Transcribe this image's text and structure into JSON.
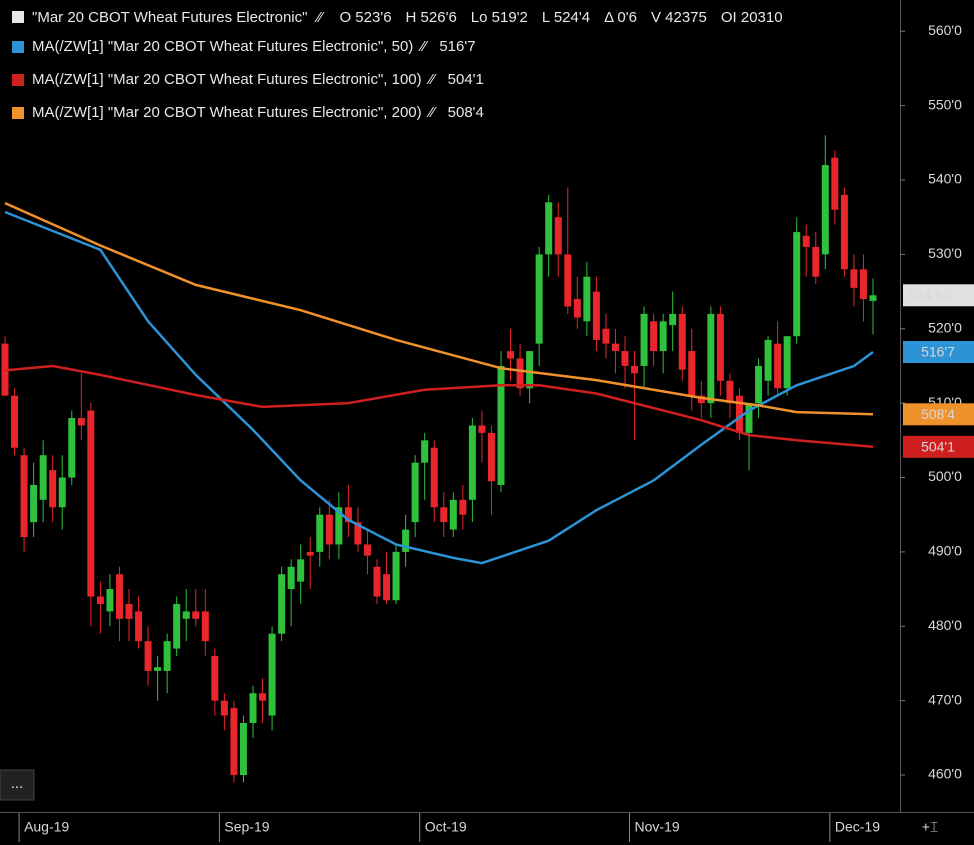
{
  "chart_data": {
    "type": "candlestick",
    "title": "\"Mar 20 CBOT Wheat Futures Electronic\"",
    "header_stats": [
      "O 523'6",
      "H 526'6",
      "Lo 519'2",
      "L 524'4",
      "Δ 0'6",
      "V 42375",
      "OI 20310"
    ],
    "last_price_label": "524.50",
    "categories": [
      null,
      null,
      "Aug-19",
      null,
      null,
      null,
      null,
      null,
      null,
      null,
      null,
      null,
      null,
      null,
      null,
      null,
      null,
      null,
      null,
      null,
      null,
      null,
      null,
      "Sep-19",
      null,
      null,
      null,
      null,
      null,
      null,
      null,
      null,
      null,
      null,
      null,
      null,
      null,
      null,
      null,
      null,
      null,
      null,
      null,
      null,
      "Oct-19",
      null,
      null,
      null,
      null,
      null,
      null,
      null,
      null,
      null,
      null,
      null,
      null,
      null,
      null,
      null,
      null,
      null,
      null,
      null,
      null,
      null,
      "Nov-19",
      null,
      null,
      null,
      null,
      null,
      null,
      null,
      null,
      null,
      null,
      null,
      null,
      null,
      null,
      null,
      null,
      null,
      null,
      null,
      null,
      "Dec-19",
      null,
      null,
      null,
      null
    ],
    "open": [
      518,
      511,
      503,
      494,
      497,
      501,
      496,
      500,
      508,
      509,
      484,
      482,
      487,
      483,
      482,
      478,
      474,
      474,
      477,
      481,
      482,
      482,
      476,
      470,
      469,
      460,
      467,
      471,
      468,
      479,
      485,
      486,
      490,
      490,
      495,
      491,
      496,
      494,
      491,
      488,
      487,
      483.5,
      490,
      494,
      502,
      504,
      496,
      493,
      497,
      497,
      507,
      506,
      499,
      517,
      516,
      512,
      518,
      530,
      535,
      530,
      524,
      521,
      525,
      520,
      518,
      517,
      515,
      515,
      521,
      517,
      520.5,
      522,
      517,
      511,
      510,
      522,
      513,
      511,
      506,
      510,
      513,
      518,
      512,
      519,
      532.5,
      531,
      530,
      543,
      538,
      528,
      528,
      523.75
    ],
    "high": [
      519,
      512,
      504,
      502,
      505,
      503,
      503,
      509,
      514,
      510,
      486,
      487,
      488,
      485,
      484,
      480,
      476,
      479,
      484,
      485,
      485,
      485,
      477,
      471,
      470,
      468,
      472,
      473,
      480,
      488,
      489,
      491,
      492,
      496,
      497,
      498,
      499,
      496,
      493,
      489,
      490,
      491,
      495,
      503,
      506,
      505,
      498,
      498,
      499,
      508,
      509,
      507,
      517,
      520,
      518,
      517,
      531,
      538,
      537,
      539,
      527,
      529,
      527,
      522,
      520,
      519,
      517,
      523,
      522,
      522,
      525,
      523,
      520,
      513,
      523,
      523,
      514,
      512,
      510,
      516,
      519,
      521,
      519,
      535,
      534,
      533,
      546,
      544,
      539,
      530,
      530,
      526.75
    ],
    "low": [
      511,
      503,
      490,
      492,
      494,
      494,
      493,
      499,
      505,
      480,
      479,
      480,
      478,
      478,
      477,
      472,
      470,
      471,
      476,
      478,
      480,
      476,
      468,
      466,
      459,
      459,
      465,
      467,
      466,
      478,
      480,
      483,
      485,
      488,
      489,
      489,
      492,
      490,
      487,
      483,
      483,
      483,
      488,
      492,
      497,
      494,
      492,
      492,
      493,
      494,
      502,
      495,
      498,
      513,
      511,
      510,
      515,
      527,
      527,
      522,
      520,
      519,
      517,
      516,
      514,
      512,
      505,
      512,
      515,
      514,
      517,
      513,
      509,
      508,
      508,
      511,
      508,
      505,
      501,
      508,
      511,
      511,
      511,
      518,
      527,
      526,
      528,
      534,
      527,
      523,
      521,
      519.25
    ],
    "close": [
      511,
      504,
      492,
      499,
      503,
      496,
      500,
      508,
      507,
      484,
      483,
      485,
      481,
      481,
      478,
      474,
      474.5,
      478,
      483,
      482,
      481,
      478,
      470,
      468,
      460,
      467,
      471,
      470,
      479,
      487,
      488,
      489,
      489.5,
      495,
      491,
      496,
      494,
      491,
      489.5,
      484,
      483.5,
      490,
      493,
      502,
      505,
      496,
      494,
      497,
      495,
      507,
      506,
      499.5,
      515,
      516,
      512,
      517,
      530,
      537,
      530,
      523,
      521.5,
      527,
      518.5,
      518,
      517,
      515,
      514,
      522,
      517,
      521,
      522,
      514.5,
      511,
      510,
      522,
      513,
      510,
      506,
      510,
      515,
      518.5,
      512,
      519,
      533,
      531,
      527,
      542,
      536,
      528,
      525.5,
      524,
      524.5
    ],
    "up_color": "#2fc13c",
    "down_color": "#e8262b",
    "series": [
      {
        "name": "MA(/ZW[1] \"Mar 20 CBOT Wheat Futures Electronic\", 50)",
        "color": "#2b93d6",
        "value_label": "516'7",
        "x": [
          0,
          10,
          15,
          20,
          26,
          31,
          36,
          41,
          47,
          50,
          57,
          62,
          68,
          73,
          78,
          83,
          89,
          91
        ],
        "values": [
          535.7,
          530.6,
          521,
          513.8,
          506.4,
          499.6,
          494.3,
          491,
          489.2,
          488.5,
          491.5,
          495.6,
          499.6,
          504.4,
          509,
          512.4,
          515,
          516.875
        ]
      },
      {
        "name": "MA(/ZW[1] \"Mar 20 CBOT Wheat Futures Electronic\", 100)",
        "color": "#cf1f1f",
        "value_label": "504'1",
        "x": [
          0,
          5,
          10,
          20,
          27,
          36,
          44,
          52,
          56,
          62,
          73,
          78,
          83,
          91
        ],
        "values": [
          514.4,
          515,
          513.8,
          511.1,
          509.5,
          510,
          511.8,
          512.4,
          512.4,
          511.3,
          507.7,
          505.7,
          505,
          504.125
        ]
      },
      {
        "name": "MA(/ZW[1] \"Mar 20 CBOT Wheat Futures Electronic\", 200)",
        "color": "#f0922b",
        "value_label": "508'4",
        "x": [
          0,
          10,
          20,
          31,
          41,
          52,
          62,
          73,
          79,
          83,
          91
        ],
        "values": [
          536.9,
          531.2,
          525.9,
          522.5,
          518.5,
          514.7,
          513.1,
          510.7,
          509.7,
          508.8,
          508.5
        ]
      }
    ],
    "ylim": [
      455.3,
      564.2
    ],
    "yticks": [
      {
        "value": 460,
        "label": "460'0"
      },
      {
        "value": 470,
        "label": "470'0"
      },
      {
        "value": 480,
        "label": "480'0"
      },
      {
        "value": 490,
        "label": "490'0"
      },
      {
        "value": 500,
        "label": "500'0"
      },
      {
        "value": 510,
        "label": "510'0"
      },
      {
        "value": 520,
        "label": "520'0"
      },
      {
        "value": 530,
        "label": "530'0"
      },
      {
        "value": 540,
        "label": "540'0"
      },
      {
        "value": 550,
        "label": "550'0"
      },
      {
        "value": 560,
        "label": "560'0"
      }
    ]
  }
}
